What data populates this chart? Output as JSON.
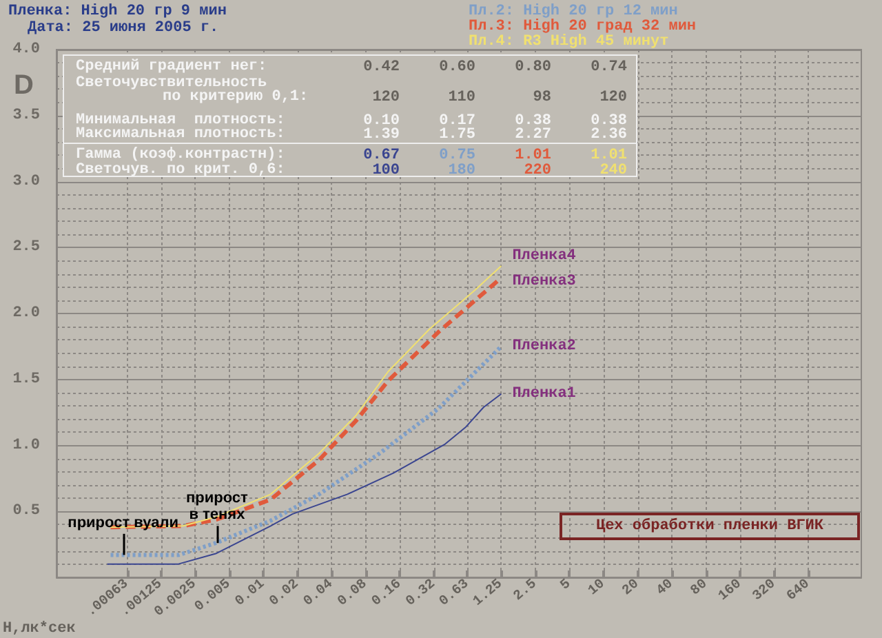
{
  "chart_data": {
    "type": "line",
    "title": "Пленка: High 20 гр 9 мин",
    "subtitle": "Дата: 25 июня 2005 г.",
    "xlabel": "Н,лк*сек",
    "ylabel": "D",
    "log": "x",
    "grid": true,
    "marker": "none",
    "xlim": [
      0.00015,
      1870
    ],
    "ylim": [
      0,
      4.0
    ],
    "xticks": [
      {
        "value": 0.00063,
        "label": ".00063"
      },
      {
        "value": 0.00125,
        "label": ".00125"
      },
      0.0025,
      0.005,
      0.01,
      0.02,
      0.04,
      0.08,
      0.16,
      0.32,
      0.63,
      1.25,
      2.5,
      5,
      10,
      20,
      40,
      80,
      160,
      320,
      640
    ],
    "yticks": [
      0.5,
      {
        "value": 1,
        "label": "1.0"
      },
      1.5,
      {
        "value": 2,
        "label": "2.0"
      },
      2.5,
      {
        "value": 3,
        "label": "3.0"
      },
      3.5,
      {
        "value": 4,
        "label": "4.0"
      }
    ],
    "series": [
      {
        "name": "Пленка1",
        "color": "#3a4590",
        "line_style": "solid",
        "x": [
          0.00042,
          0.00176,
          0.0038,
          0.0116,
          0.018,
          0.055,
          0.14,
          0.4,
          0.61,
          0.875,
          1.25
        ],
        "values": [
          0.1,
          0.1,
          0.18,
          0.39,
          0.48,
          0.63,
          0.79,
          1.01,
          1.14,
          1.29,
          1.39
        ]
      },
      {
        "name": "Пленка2",
        "color": "#7f9fc8",
        "line_style": "dotted",
        "x": [
          0.00045,
          0.0018,
          0.0038,
          0.0116,
          0.031,
          0.106,
          0.35,
          1.25
        ],
        "values": [
          0.17,
          0.17,
          0.26,
          0.43,
          0.63,
          0.94,
          1.28,
          1.75
        ]
      },
      {
        "name": "Пленка3",
        "color": "#e05a3c",
        "line_style": "dashed",
        "x": [
          0.00045,
          0.00197,
          0.0039,
          0.0116,
          0.031,
          0.066,
          0.126,
          0.35,
          1.25
        ],
        "values": [
          0.38,
          0.39,
          0.44,
          0.59,
          0.89,
          1.19,
          1.49,
          1.86,
          2.27
        ]
      },
      {
        "name": "Пленка4",
        "color": "#f0e070",
        "line_style": "solid",
        "x": [
          0.00045,
          0.00197,
          0.0039,
          0.0116,
          0.031,
          0.066,
          0.126,
          0.29,
          0.74,
          1.25
        ],
        "values": [
          0.38,
          0.39,
          0.46,
          0.63,
          0.94,
          1.23,
          1.56,
          1.88,
          2.18,
          2.36
        ]
      }
    ],
    "annotations": [
      "Пл.2: High 20 гр 12 мин",
      "Пл.3: High 20 град 32 мин",
      "Пл.4: R3 High 45 минут",
      "Средний градиент нег:",
      "0.42",
      "0.60",
      "0.80",
      "0.74",
      "Светочувствительность",
      "по критерию 0,1:",
      "120",
      "110",
      "98",
      "120",
      "Минимальная  плотность:",
      "0.10",
      "0.17",
      "0.38",
      "0.38",
      "Максимальная плотность:",
      "1.39",
      "1.75",
      "2.27",
      "2.36",
      "Гамма (коэф.контрастн):",
      "0.67",
      "0.75",
      "1.01",
      "1.01",
      "Светочув. по крит. 0,6:",
      "100",
      "180",
      "220",
      "240",
      "Цех обработки пленки ВГИК",
      {
        "text": "прирост вуали",
        "x": 0.00058,
        "y": 0.17
      },
      {
        "text": "прирост в тенях",
        "x": 0.0039,
        "y": 0.26
      }
    ]
  }
}
